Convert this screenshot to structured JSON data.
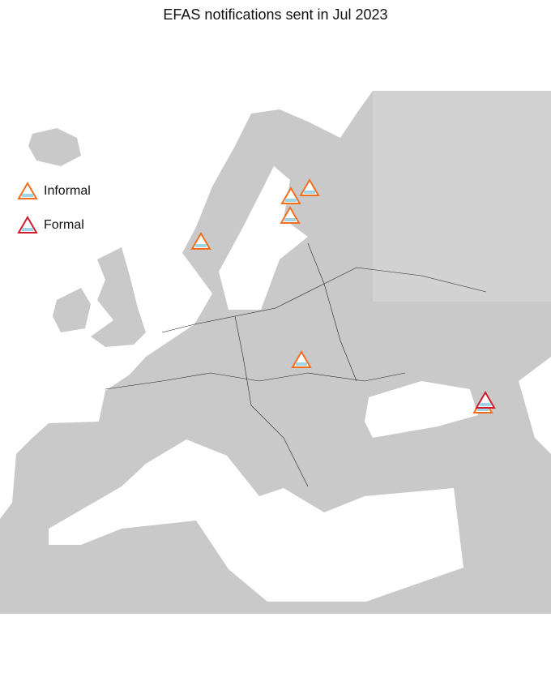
{
  "title": "EFAS notifications sent in Jul 2023",
  "legend": {
    "items": [
      {
        "label": "Informal"
      },
      {
        "label": "Formal"
      }
    ]
  }
}
